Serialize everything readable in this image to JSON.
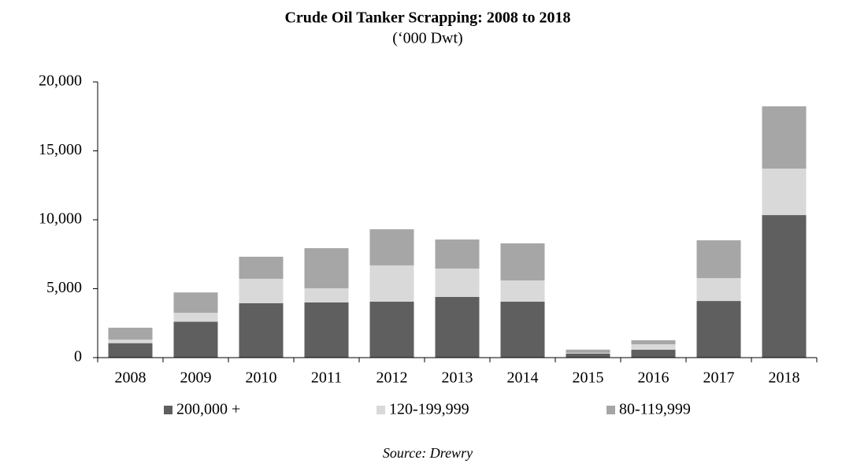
{
  "chart_data": {
    "type": "stacked_bar",
    "title": "Crude Oil Tanker Scrapping: 2008 to 2018",
    "subtitle": "(‘000 Dwt)",
    "source": "Source: Drewry",
    "categories": [
      "2008",
      "2009",
      "2010",
      "2011",
      "2012",
      "2013",
      "2014",
      "2015",
      "2016",
      "2017",
      "2018"
    ],
    "series": [
      {
        "name": "200,000 +",
        "color": "#5f5f5f",
        "values": [
          1050,
          2600,
          3950,
          4000,
          4060,
          4400,
          4060,
          300,
          570,
          4110,
          10340
        ]
      },
      {
        "name": "120-199,999",
        "color": "#d9d9d9",
        "values": [
          250,
          650,
          1770,
          1030,
          2630,
          2060,
          1540,
          50,
          400,
          1660,
          3370
        ]
      },
      {
        "name": "80-119,999",
        "color": "#a6a6a6",
        "values": [
          870,
          1480,
          1600,
          2910,
          2620,
          2110,
          2690,
          230,
          290,
          2740,
          4520
        ]
      }
    ],
    "ylim": [
      0,
      20000
    ],
    "yticks": [
      0,
      {
        "value": 5000,
        "label": "5,000"
      },
      {
        "value": 10000,
        "label": "10,000"
      },
      {
        "value": 15000,
        "label": "15,000"
      },
      {
        "value": 20000,
        "label": "20,000"
      }
    ],
    "grid": false
  }
}
